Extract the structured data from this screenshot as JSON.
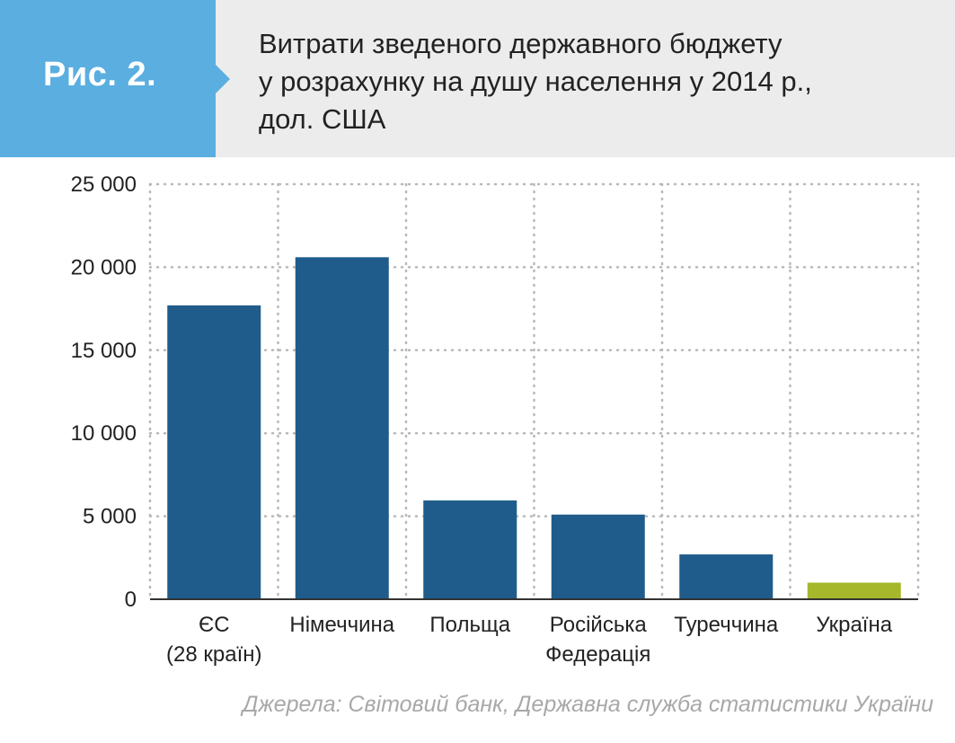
{
  "figure": {
    "badge": "Рис. 2.",
    "title_lines": [
      "Витрати зведеного державного бюджету",
      "у розрахунку на душу населення у 2014 р.,",
      "дол. США"
    ],
    "source": "Джерела: Світовий банк, Державна служба статистики України"
  },
  "colors": {
    "badge": "#5aaee0",
    "bar": "#1f5c8b",
    "highlight": "#a5b82c",
    "grid": "#b8b8b8",
    "header_bg": "#ececec"
  },
  "chart_data": {
    "type": "bar",
    "categories": [
      [
        "ЄС",
        "(28 країн)"
      ],
      [
        "Німеччина"
      ],
      [
        "Польща"
      ],
      [
        "Російська",
        "Федерація"
      ],
      [
        "Туреччина"
      ],
      [
        "Україна"
      ]
    ],
    "values": [
      17700,
      20600,
      5950,
      5100,
      2700,
      1000
    ],
    "highlight_index": 5,
    "ylim": [
      0,
      25000
    ],
    "yticks": [
      0,
      5000,
      10000,
      15000,
      20000,
      25000
    ],
    "ytick_labels": [
      "0",
      "5 000",
      "10 000",
      "15 000",
      "20 000",
      "25 000"
    ],
    "grid": "dotted",
    "legend": "none"
  }
}
